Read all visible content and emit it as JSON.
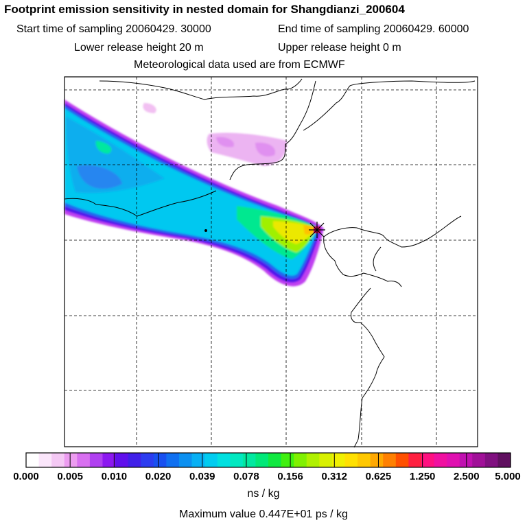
{
  "header": {
    "title": "Footprint emission sensitivity in nested domain for Shangdianzi_200604",
    "start_time": "Start time of sampling 20060429. 30000",
    "end_time": "End time of sampling 20060429. 60000",
    "lower_height": "Lower release height   20 m",
    "upper_height": "Upper release height    0 m",
    "met_data": "Meteorological data used are from ECMWF"
  },
  "map": {
    "grid": "dashed",
    "receptor_marker": "star",
    "receptor_color": "#d01060"
  },
  "colorbar": {
    "tick_labels": [
      "0.000",
      "0.005",
      "0.010",
      "0.020",
      "0.039",
      "0.078",
      "0.156",
      "0.312",
      "0.625",
      "1.250",
      "2.500",
      "5.000"
    ],
    "colors": [
      "#ffffff",
      "#fbe6fb",
      "#f4c8f4",
      "#ec9cf0",
      "#d870f0",
      "#b040f0",
      "#8c18f0",
      "#6010ec",
      "#4020e8",
      "#2c3cf0",
      "#1850f0",
      "#1070f0",
      "#0c90f0",
      "#08b0f4",
      "#00ccf0",
      "#00e0e0",
      "#00e8c0",
      "#00e8a0",
      "#00e878",
      "#10e840",
      "#40f010",
      "#80f000",
      "#b0f000",
      "#d8f000",
      "#f0f000",
      "#ffe000",
      "#ffc800",
      "#ffa800",
      "#ff8000",
      "#ff5000",
      "#ff2040",
      "#ff1080",
      "#f010a0",
      "#e010b0",
      "#c010b0",
      "#a01098",
      "#801080",
      "#601060"
    ],
    "unit": "ns / kg"
  },
  "footer": {
    "max_value": "Maximum value  0.447E+01 ps / kg"
  }
}
